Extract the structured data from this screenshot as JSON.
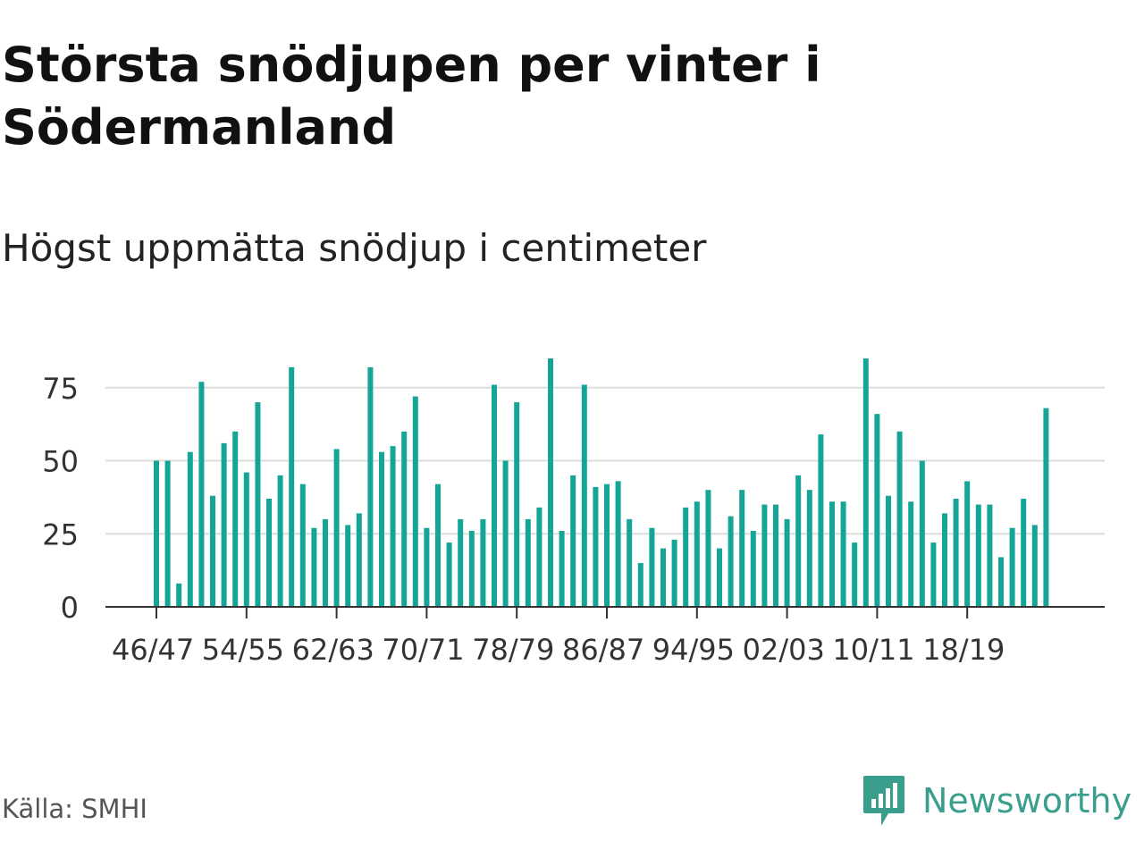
{
  "title": "Största snödjupen per vinter i Södermanland",
  "subtitle": "Högst uppmätta snödjup i centimeter",
  "source": "Källa: SMHI",
  "brand": {
    "name": "Newsworthy",
    "color": "#3a9e8d",
    "icon": "newsworthy-chart-bubble-icon"
  },
  "colors": {
    "bar": "#14a596",
    "grid": "#dddddd",
    "axis": "#333333"
  },
  "chart_data": {
    "type": "bar",
    "title": "Största snödjupen per vinter i Södermanland",
    "subtitle": "Högst uppmätta snödjup i centimeter",
    "ylabel": "",
    "xlabel": "",
    "ylim": [
      0,
      90
    ],
    "yticks": [
      0,
      25,
      50,
      75
    ],
    "grid": true,
    "legend": "none",
    "xtick_labels": [
      {
        "index": 0,
        "label": "46/47"
      },
      {
        "index": 8,
        "label": "54/55"
      },
      {
        "index": 16,
        "label": "62/63"
      },
      {
        "index": 24,
        "label": "70/71"
      },
      {
        "index": 32,
        "label": "78/79"
      },
      {
        "index": 40,
        "label": "86/87"
      },
      {
        "index": 48,
        "label": "94/95"
      },
      {
        "index": 56,
        "label": "02/03"
      },
      {
        "index": 64,
        "label": "10/11"
      },
      {
        "index": 72,
        "label": "18/19"
      }
    ],
    "values": [
      50,
      50,
      8,
      53,
      77,
      38,
      56,
      60,
      46,
      70,
      37,
      45,
      82,
      42,
      27,
      30,
      54,
      28,
      32,
      82,
      53,
      55,
      60,
      72,
      27,
      42,
      22,
      30,
      26,
      30,
      76,
      50,
      70,
      30,
      34,
      85,
      26,
      45,
      76,
      41,
      42,
      43,
      30,
      15,
      27,
      20,
      23,
      34,
      36,
      40,
      20,
      31,
      40,
      26,
      35,
      35,
      30,
      45,
      40,
      59,
      36,
      36,
      22,
      85,
      66,
      38,
      60,
      36,
      50,
      22,
      32,
      37,
      43,
      35,
      35,
      17,
      27,
      37,
      28,
      68
    ]
  }
}
